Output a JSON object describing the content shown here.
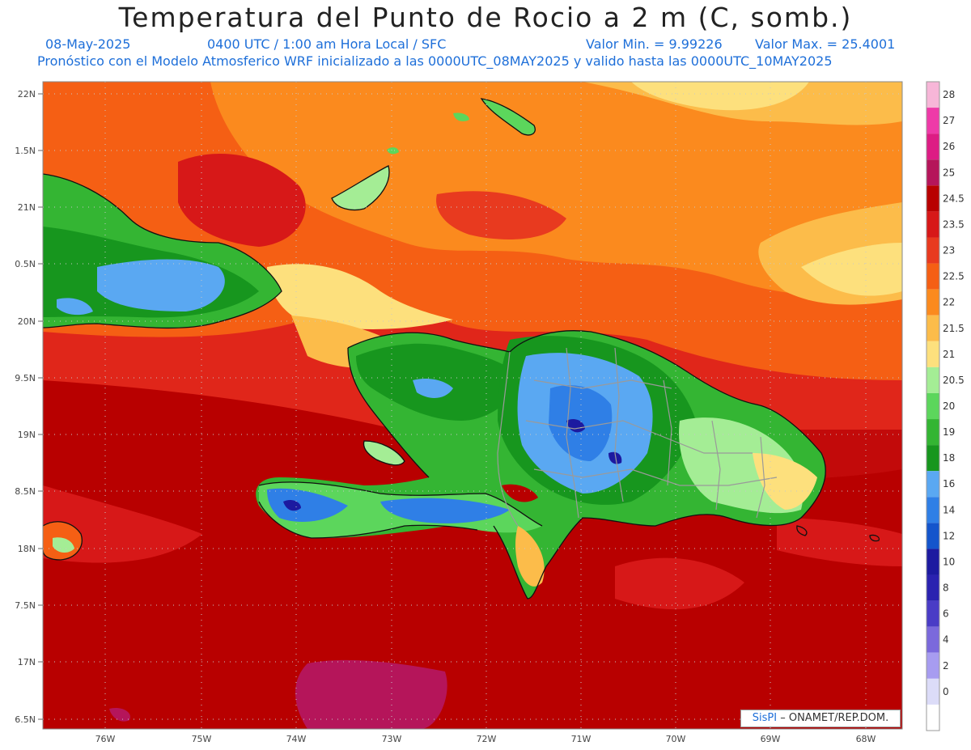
{
  "header": {
    "title": "Temperatura del Punto de Rocio a 2 m (C, somb.)",
    "date": "08-May-2025",
    "time": "0400 UTC / 1:00 am Hora Local / SFC",
    "min_label": "Valor Min. = 9.99226",
    "max_label": "Valor Max. = 25.4001",
    "model_line": "Pronóstico con el Modelo Atmosferico WRF inicializado a las 0000UTC_08MAY2025 y valido hasta las  0000UTC_10MAY2025"
  },
  "axes": {
    "lat_labels": [
      "22N",
      "1.5N",
      "21N",
      "0.5N",
      "20N",
      "9.5N",
      "19N",
      "8.5N",
      "18N",
      "7.5N",
      "17N",
      "6.5N"
    ],
    "lon_labels": [
      "76W",
      "75W",
      "74W",
      "73W",
      "72W",
      "71W",
      "70W",
      "69W",
      "68W"
    ]
  },
  "legend": {
    "entries": [
      {
        "label": "28",
        "color": "#f7b6d8"
      },
      {
        "label": "27",
        "color": "#ee3aa8"
      },
      {
        "label": "26",
        "color": "#dd1c84"
      },
      {
        "label": "25",
        "color": "#b5155a"
      },
      {
        "label": "24.5",
        "color": "#b80000"
      },
      {
        "label": "23.5",
        "color": "#d71818"
      },
      {
        "label": "23",
        "color": "#e83a1f"
      },
      {
        "label": "22.5",
        "color": "#f55f14"
      },
      {
        "label": "22",
        "color": "#fb8a1e"
      },
      {
        "label": "21.5",
        "color": "#fcbc4a"
      },
      {
        "label": "21",
        "color": "#fde07d"
      },
      {
        "label": "20.5",
        "color": "#a4ed95"
      },
      {
        "label": "20",
        "color": "#5cd65c"
      },
      {
        "label": "19",
        "color": "#34b533"
      },
      {
        "label": "18",
        "color": "#17961e"
      },
      {
        "label": "16",
        "color": "#5aa8f2"
      },
      {
        "label": "14",
        "color": "#2f7fe6"
      },
      {
        "label": "12",
        "color": "#1455cc"
      },
      {
        "label": "10",
        "color": "#1c1aa0"
      },
      {
        "label": "8",
        "color": "#2a22b0"
      },
      {
        "label": "6",
        "color": "#4a3cc6"
      },
      {
        "label": "4",
        "color": "#7b69dc"
      },
      {
        "label": "2",
        "color": "#a79cf0"
      },
      {
        "label": "0",
        "color": "#dcdcf8"
      },
      {
        "label": "",
        "color": "#ffffff"
      }
    ]
  },
  "credit": {
    "brand": "SisPI",
    "text": " – ONAMET/REP.DOM."
  }
}
